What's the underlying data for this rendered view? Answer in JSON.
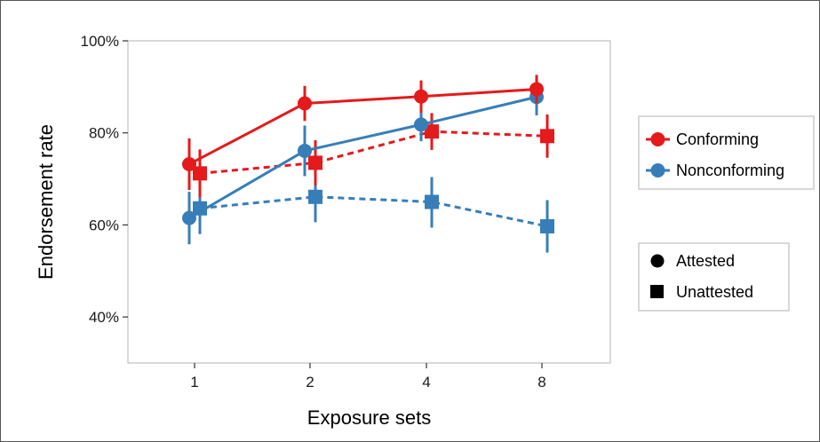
{
  "chart_data": {
    "type": "line",
    "xlabel": "Exposure sets",
    "ylabel": "Endorsement rate",
    "categories": [
      "1",
      "2",
      "4",
      "8"
    ],
    "y_ticks": [
      "40%",
      "60%",
      "80%",
      "100%"
    ],
    "y_tick_values": [
      40,
      60,
      80,
      100
    ],
    "ylim": [
      30,
      100
    ],
    "grid": false,
    "legend_placement": "right",
    "legend_color": {
      "title": "",
      "items": [
        {
          "label": "Conforming",
          "color": "#e41a1c"
        },
        {
          "label": "Nonconforming",
          "color": "#377eb8"
        }
      ]
    },
    "legend_shape": {
      "title": "",
      "items": [
        {
          "label": "Attested",
          "shape": "circle",
          "line": "solid"
        },
        {
          "label": "Unattested",
          "shape": "square",
          "line": "dashed"
        }
      ]
    },
    "series": [
      {
        "group": "Conforming",
        "type": "Attested",
        "color": "#e41a1c",
        "shape": "circle",
        "dashed": false,
        "values": [
          73.2,
          86.4,
          87.9,
          89.5
        ],
        "lower": [
          67.6,
          82.6,
          84.4,
          86.4
        ],
        "upper": [
          78.8,
          90.2,
          91.4,
          92.6
        ]
      },
      {
        "group": "Conforming",
        "type": "Unattested",
        "color": "#e41a1c",
        "shape": "square",
        "dashed": true,
        "values": [
          71.2,
          73.5,
          80.3,
          79.3
        ],
        "lower": [
          66.0,
          68.6,
          76.3,
          74.6
        ],
        "upper": [
          76.4,
          78.4,
          84.3,
          84.0
        ]
      },
      {
        "group": "Nonconforming",
        "type": "Attested",
        "color": "#377eb8",
        "shape": "circle",
        "dashed": false,
        "values": [
          61.5,
          76.1,
          81.8,
          87.8
        ],
        "lower": [
          55.8,
          70.6,
          78.2,
          83.8
        ],
        "upper": [
          67.2,
          81.6,
          85.4,
          91.8
        ]
      },
      {
        "group": "Nonconforming",
        "type": "Unattested",
        "color": "#377eb8",
        "shape": "square",
        "dashed": true,
        "values": [
          63.6,
          66.1,
          65.0,
          59.7
        ],
        "lower": [
          58.0,
          60.6,
          59.4,
          54.0
        ],
        "upper": [
          69.2,
          71.6,
          70.4,
          65.4
        ]
      }
    ]
  }
}
